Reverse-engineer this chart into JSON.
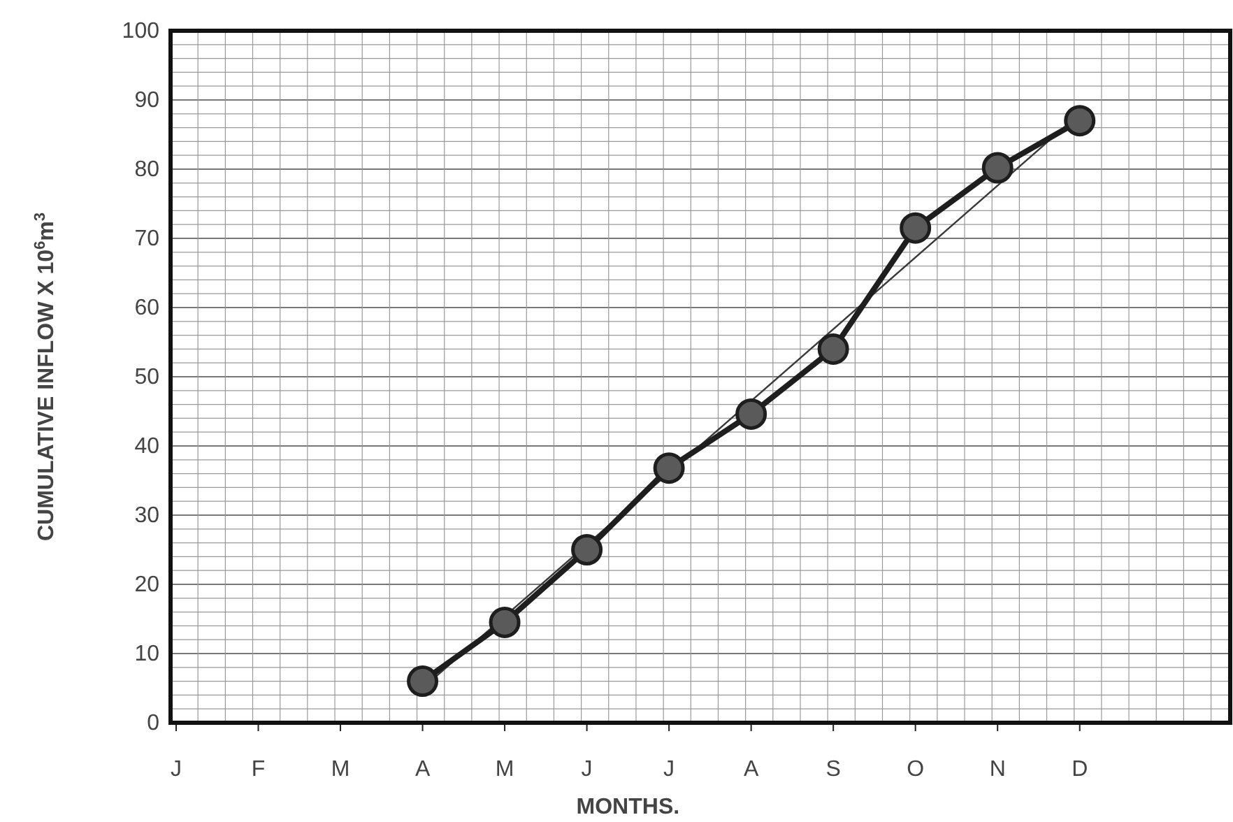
{
  "chart_data": {
    "type": "line",
    "xlabel": "MONTHS.",
    "ylabel": "CUMULATIVE INFLOW X 10$^{6}$m$^{3}$",
    "categories": [
      "J",
      "F",
      "M",
      "A",
      "M",
      "J",
      "J",
      "A",
      "S",
      "O",
      "N",
      "D"
    ],
    "series": [
      {
        "color": "#1e1e1e",
        "marker": "circle",
        "values": [
          null,
          null,
          null,
          6,
          14.5,
          25,
          36.8,
          44.6,
          54,
          71.5,
          80.2,
          87
        ]
      },
      {
        "color": "#3a3a3a",
        "marker": "none",
        "values": [
          null,
          null,
          null,
          5,
          null,
          null,
          null,
          null,
          null,
          null,
          null,
          88
        ]
      }
    ],
    "ylim": [
      0,
      100
    ],
    "yticks": [
      0,
      10,
      20,
      30,
      40,
      50,
      60,
      70,
      80,
      90,
      100
    ],
    "grid": true
  }
}
